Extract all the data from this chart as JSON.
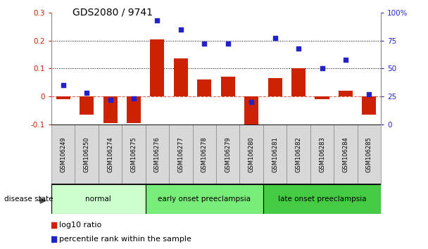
{
  "title": "GDS2080 / 9741",
  "samples": [
    "GSM106249",
    "GSM106250",
    "GSM106274",
    "GSM106275",
    "GSM106276",
    "GSM106277",
    "GSM106278",
    "GSM106279",
    "GSM106280",
    "GSM106281",
    "GSM106282",
    "GSM106283",
    "GSM106284",
    "GSM106285"
  ],
  "log10_ratio": [
    -0.01,
    -0.065,
    -0.095,
    -0.095,
    0.205,
    0.135,
    0.06,
    0.07,
    -0.13,
    0.065,
    0.1,
    -0.01,
    0.02,
    -0.065
  ],
  "percentile_rank": [
    35,
    28,
    22,
    23,
    93,
    85,
    72,
    72,
    20,
    77,
    68,
    50,
    58,
    27
  ],
  "groups": [
    {
      "label": "normal",
      "start": 0,
      "end": 4
    },
    {
      "label": "early onset preeclampsia",
      "start": 4,
      "end": 9
    },
    {
      "label": "late onset preeclampsia",
      "start": 9,
      "end": 14
    }
  ],
  "group_colors": [
    "#ccffcc",
    "#77ee77",
    "#44cc44"
  ],
  "bar_color": "#cc2200",
  "dot_color": "#2222cc",
  "ylim_left": [
    -0.1,
    0.3
  ],
  "ylim_right": [
    0,
    100
  ],
  "yticks_left": [
    -0.1,
    0.0,
    0.1,
    0.2,
    0.3
  ],
  "ytick_labels_left": [
    "-0.1",
    "0",
    "0.1",
    "0.2",
    "0.3"
  ],
  "yticks_right": [
    0,
    25,
    50,
    75,
    100
  ],
  "ytick_labels_right": [
    "0",
    "25",
    "50",
    "75",
    "100%"
  ],
  "hline_dotted_vals": [
    0.1,
    0.2
  ],
  "bg_color": "#ffffff",
  "legend_items": [
    "log10 ratio",
    "percentile rank within the sample"
  ],
  "disease_state_label": "disease state"
}
